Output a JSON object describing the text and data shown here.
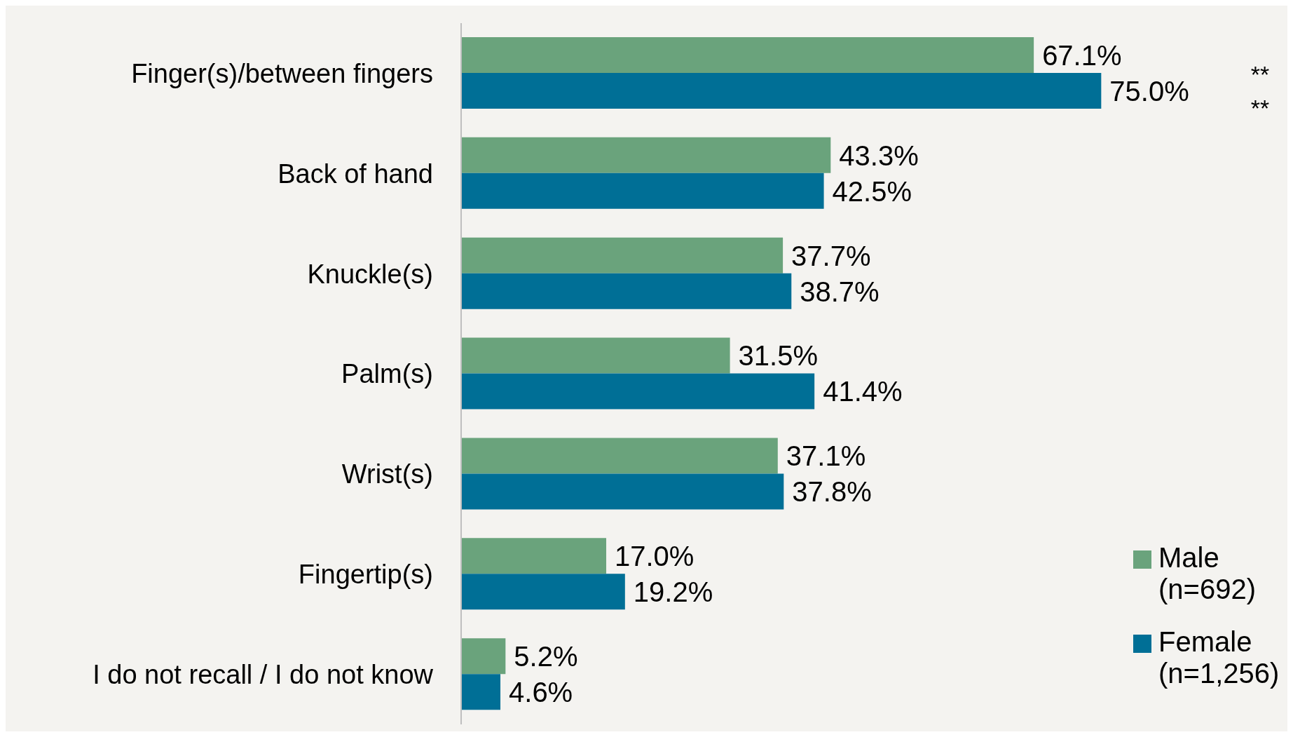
{
  "chart_data": {
    "type": "bar",
    "orientation": "horizontal",
    "categories": [
      "Finger(s)/between fingers",
      "Back of hand",
      "Knuckle(s)",
      "Palm(s)",
      "Wrist(s)",
      "Fingertip(s)",
      "I do not recall / I do not know"
    ],
    "series": [
      {
        "name": "Male (n=692)",
        "color": "#6aa37c",
        "values": [
          67.1,
          43.3,
          37.7,
          31.5,
          37.1,
          17.0,
          5.2
        ],
        "value_labels": [
          "67.1%",
          "43.3%",
          "37.7%",
          "31.5%",
          "37.1%",
          "17.0%",
          "5.2%"
        ]
      },
      {
        "name": "Female (n=1,256)",
        "color": "#006f96",
        "values": [
          75.0,
          42.5,
          38.7,
          41.4,
          37.8,
          19.2,
          4.6
        ],
        "value_labels": [
          "75.0%",
          "42.5%",
          "38.7%",
          "41.4%",
          "37.8%",
          "19.2%",
          "4.6%"
        ]
      }
    ],
    "annotations": [
      "**",
      "**"
    ],
    "legend": "bottom right"
  }
}
